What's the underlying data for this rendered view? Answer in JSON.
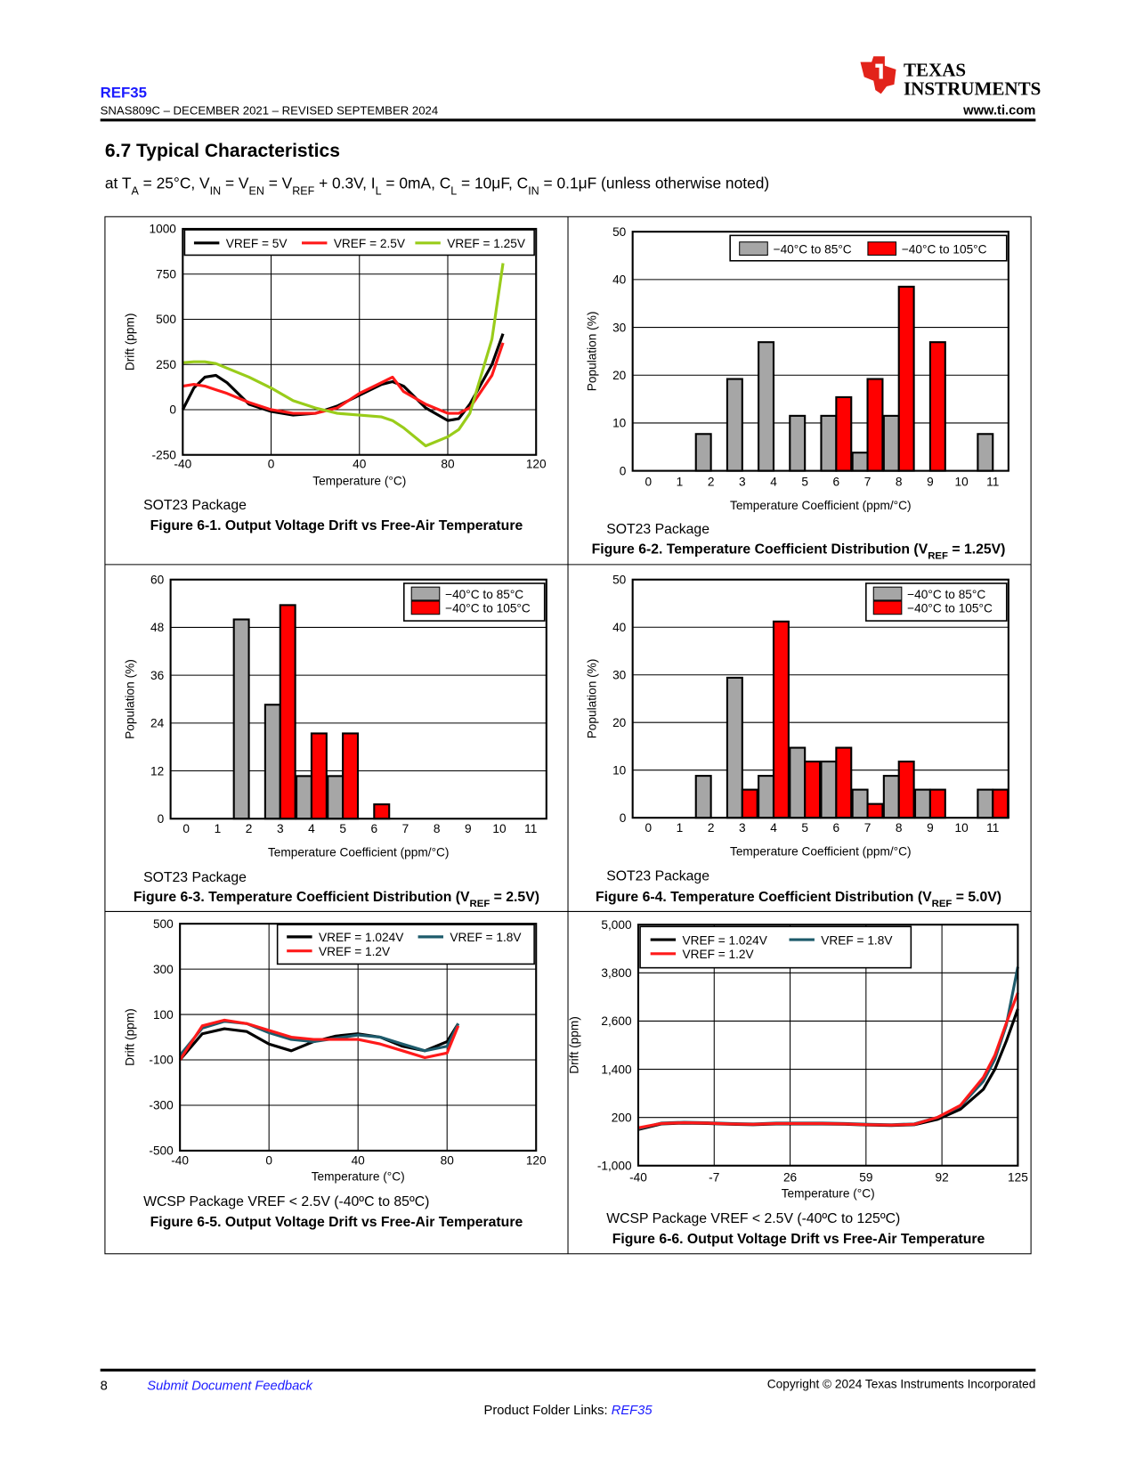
{
  "header": {
    "doc_title": "REF35",
    "doc_number": "SNAS809C – DECEMBER 2021 – REVISED SEPTEMBER 2024",
    "logo_line1": "Texas",
    "logo_line2": "Instruments",
    "url": "www.ti.com"
  },
  "section": {
    "title": "6.7 Typical Characteristics",
    "conditions": [
      "at T",
      "A",
      " = 25°C, V",
      "IN",
      " = V",
      "EN",
      " = V",
      "REF",
      " + 0.3V, I",
      "L",
      " = 0mA, C",
      "L",
      " = 10μF, C",
      "IN",
      " = 0.1μF (unless otherwise noted)"
    ]
  },
  "chart_data": [
    {
      "type": "line",
      "caption": [
        "Figure 6-1. Output Voltage Drift vs Free-Air Temperature"
      ],
      "note": "SOT23 Package",
      "x_label": "Temperature (°C)",
      "y_label": "Drift (ppm)",
      "x": [
        -40,
        -35,
        -30,
        -25,
        -20,
        -10,
        0,
        10,
        20,
        30,
        40,
        50,
        55,
        60,
        70,
        80,
        85,
        90,
        100,
        105
      ],
      "series": [
        {
          "name": "VREF = 5V",
          "color": "#000000",
          "values": [
            0,
            120,
            180,
            190,
            150,
            30,
            -10,
            -30,
            -20,
            20,
            80,
            140,
            155,
            130,
            10,
            -60,
            -50,
            30,
            250,
            420
          ]
        },
        {
          "name": "VREF = 2.5V",
          "color": "#ff1a1a",
          "values": [
            130,
            140,
            130,
            110,
            90,
            40,
            0,
            -20,
            -20,
            10,
            90,
            150,
            180,
            100,
            30,
            -20,
            -20,
            10,
            190,
            370
          ]
        },
        {
          "name": "VREF = 1.25V",
          "color": "#99cc1a",
          "values": [
            260,
            265,
            265,
            255,
            230,
            180,
            120,
            50,
            10,
            -20,
            -30,
            -40,
            -60,
            -100,
            -200,
            -150,
            -110,
            -20,
            390,
            810
          ]
        }
      ],
      "xlim": [
        -40,
        120
      ],
      "xticks": [
        -40,
        0,
        40,
        80,
        120
      ],
      "ylim": [
        -250,
        1000
      ],
      "yticks": [
        -250,
        0,
        250,
        500,
        750,
        1000
      ],
      "grid": "both",
      "legend": "upper left"
    },
    {
      "type": "bar",
      "caption": [
        "Figure 6-2. Temperature Coefficient Distribution (V",
        "REF",
        " = 1.25V)"
      ],
      "note": "SOT23 Package",
      "x_label": "Temperature Coefficient (ppm/°C)",
      "y_label": "Population (%)",
      "categories": [
        0,
        1,
        2,
        3,
        4,
        5,
        6,
        7,
        8,
        9,
        10,
        11
      ],
      "series": [
        {
          "name": "−40°C to 85°C",
          "color": "#a6a6a6",
          "values": [
            0,
            0,
            7.7,
            19.2,
            26.9,
            11.5,
            11.5,
            3.8,
            11.5,
            0,
            0,
            7.7
          ]
        },
        {
          "name": "−40°C to 105°C",
          "color": "#ff0000",
          "values": [
            0,
            0,
            0,
            0,
            0,
            0,
            15.4,
            19.2,
            38.5,
            26.9,
            0,
            0
          ]
        }
      ],
      "ylim": [
        0,
        50
      ],
      "yticks": [
        0,
        10,
        20,
        30,
        40,
        50
      ],
      "grid": "y",
      "legend": "upper right"
    },
    {
      "type": "bar",
      "caption": [
        "Figure 6-3. Temperature Coefficient Distribution (V",
        "REF",
        " = 2.5V)"
      ],
      "note": "SOT23 Package",
      "x_label": "Temperature Coefficient (ppm/°C)",
      "y_label": "Population (%)",
      "categories": [
        0,
        1,
        2,
        3,
        4,
        5,
        6,
        7,
        8,
        9,
        10,
        11
      ],
      "series": [
        {
          "name": "−40°C to 85°C",
          "color": "#a6a6a6",
          "values": [
            0,
            0,
            50,
            28.6,
            10.7,
            10.7,
            0,
            0,
            0,
            0,
            0,
            0
          ]
        },
        {
          "name": "−40°C to 105°C",
          "color": "#ff0000",
          "values": [
            0,
            0,
            0,
            53.6,
            21.4,
            21.4,
            3.6,
            0,
            0,
            0,
            0,
            0
          ]
        }
      ],
      "ylim": [
        0,
        60
      ],
      "yticks": [
        0,
        12,
        24,
        36,
        48,
        60
      ],
      "grid": "y",
      "legend": "upper right"
    },
    {
      "type": "bar",
      "caption": [
        "Figure 6-4. Temperature Coefficient Distribution (V",
        "REF",
        " = 5.0V)"
      ],
      "note": "SOT23 Package",
      "x_label": "Temperature Coefficient (ppm/°C)",
      "y_label": "Population (%)",
      "categories": [
        0,
        1,
        2,
        3,
        4,
        5,
        6,
        7,
        8,
        9,
        10,
        11
      ],
      "series": [
        {
          "name": "−40°C to 85°C",
          "color": "#a6a6a6",
          "values": [
            0,
            0,
            8.8,
            29.4,
            8.8,
            14.7,
            11.8,
            5.9,
            8.8,
            5.9,
            0,
            5.9
          ]
        },
        {
          "name": "−40°C to 105°C",
          "color": "#ff0000",
          "values": [
            0,
            0,
            0,
            5.9,
            41.2,
            11.8,
            14.7,
            2.9,
            11.8,
            5.9,
            0,
            5.9
          ]
        }
      ],
      "ylim": [
        0,
        50
      ],
      "yticks": [
        0,
        10,
        20,
        30,
        40,
        50
      ],
      "grid": "y",
      "legend": "upper right"
    },
    {
      "type": "line",
      "caption": [
        "Figure 6-5. Output Voltage Drift vs Free-Air Temperature"
      ],
      "note": "WCSP Package VREF < 2.5V (-40ºC to 85ºC)",
      "x_label": "Temperature (°C)",
      "y_label": "Drift (ppm)",
      "x": [
        -40,
        -30,
        -20,
        -10,
        0,
        10,
        20,
        30,
        40,
        50,
        60,
        70,
        80,
        85
      ],
      "series": [
        {
          "name": "VREF = 1.024V",
          "color": "#000000",
          "values": [
            -100,
            15,
            37,
            25,
            -30,
            -60,
            -20,
            5,
            15,
            0,
            -40,
            -60,
            -20,
            60
          ]
        },
        {
          "name": "VREF = 1.8V",
          "color": "#1d5b6b",
          "values": [
            -80,
            40,
            70,
            60,
            20,
            -10,
            -20,
            -5,
            10,
            0,
            -30,
            -60,
            -40,
            60
          ]
        },
        {
          "name": "VREF = 1.2V",
          "color": "#ff1a1a",
          "values": [
            -100,
            50,
            75,
            60,
            30,
            0,
            -10,
            -10,
            -10,
            -30,
            -60,
            -90,
            -70,
            50
          ]
        }
      ],
      "xlim": [
        -40,
        120
      ],
      "xticks": [
        -40,
        0,
        40,
        80,
        120
      ],
      "ylim": [
        -500,
        500
      ],
      "yticks": [
        -500,
        -300,
        -100,
        100,
        300,
        500
      ],
      "grid": "both",
      "legend": "upper right"
    },
    {
      "type": "line",
      "caption": [
        "Figure 6-6. Output Voltage Drift vs Free-Air Temperature"
      ],
      "note": "WCSP Package VREF < 2.5V (-40ºC to 125ºC)",
      "x_label": "Temperature (°C)",
      "y_label": "Drift (ppm)",
      "x": [
        -40,
        -30,
        -20,
        -10,
        0,
        10,
        20,
        30,
        40,
        50,
        60,
        70,
        80,
        90,
        100,
        110,
        115,
        120,
        125
      ],
      "series": [
        {
          "name": "VREF = 1.024V",
          "color": "#000000",
          "values": [
            -100,
            40,
            60,
            50,
            30,
            20,
            40,
            40,
            40,
            30,
            10,
            0,
            20,
            150,
            400,
            900,
            1400,
            2100,
            2900
          ]
        },
        {
          "name": "VREF = 1.8V",
          "color": "#1d5b6b",
          "values": [
            -80,
            60,
            80,
            70,
            50,
            40,
            60,
            60,
            60,
            50,
            30,
            20,
            40,
            200,
            480,
            1100,
            1650,
            2500,
            3950
          ]
        },
        {
          "name": "VREF = 1.2V",
          "color": "#ff1a1a",
          "values": [
            -60,
            50,
            70,
            60,
            40,
            30,
            50,
            50,
            50,
            40,
            20,
            10,
            30,
            200,
            500,
            1200,
            1750,
            2550,
            3300
          ]
        }
      ],
      "xlim": [
        -40,
        125
      ],
      "xticks": [
        -40,
        -7,
        26,
        59,
        92,
        125
      ],
      "ylim": [
        -1000,
        5000
      ],
      "yticks": [
        {
          "value": -1000,
          "label": "-1,000"
        },
        200,
        {
          "value": 1400,
          "label": "1,400"
        },
        {
          "value": 2600,
          "label": "2,600"
        },
        {
          "value": 3800,
          "label": "3,800"
        },
        {
          "value": 5000,
          "label": "5,000"
        }
      ],
      "grid": "both",
      "legend": "upper left"
    }
  ],
  "footer": {
    "page_number": "8",
    "feedback_link": "Submit Document Feedback",
    "copyright": "Copyright © 2024 Texas Instruments Incorporated",
    "folder_links_label": "Product Folder Links: ",
    "folder_link": "REF35"
  }
}
